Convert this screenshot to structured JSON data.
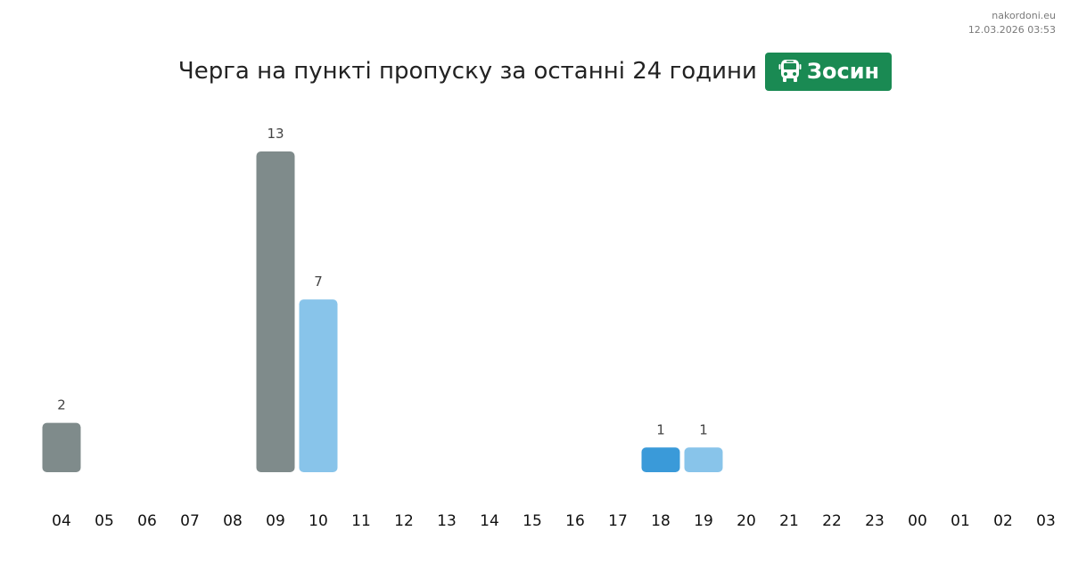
{
  "site": {
    "domain": "nakordoni.eu",
    "timestamp": "12.03.2026 03:53"
  },
  "title": "Черга на пункті пропуску за останні 24 години",
  "crossing": {
    "name": "Зосин",
    "icon": "bus-icon",
    "color": "#1a8a53"
  },
  "colors": {
    "gray": "#7f8b8b",
    "light_blue": "#88c4ea",
    "blue": "#3a9ad9",
    "value_label": "#444444",
    "tick_label": "#111111"
  },
  "chart_data": {
    "type": "bar",
    "categories": [
      "04",
      "05",
      "06",
      "07",
      "08",
      "09",
      "10",
      "11",
      "12",
      "13",
      "14",
      "15",
      "16",
      "17",
      "18",
      "19",
      "20",
      "21",
      "22",
      "23",
      "00",
      "01",
      "02",
      "03"
    ],
    "values": [
      2,
      null,
      null,
      null,
      null,
      13,
      7,
      null,
      null,
      null,
      null,
      null,
      null,
      null,
      1,
      1,
      null,
      null,
      null,
      null,
      null,
      null,
      null,
      null
    ],
    "bar_colors": [
      "gray",
      null,
      null,
      null,
      null,
      "gray",
      "light_blue",
      null,
      null,
      null,
      null,
      null,
      null,
      null,
      "blue",
      "light_blue",
      null,
      null,
      null,
      null,
      null,
      null,
      null,
      null
    ],
    "data_labels": true,
    "grid": false,
    "legend": "none",
    "xlabel": "",
    "ylabel": "",
    "ylim": [
      0,
      13
    ]
  }
}
